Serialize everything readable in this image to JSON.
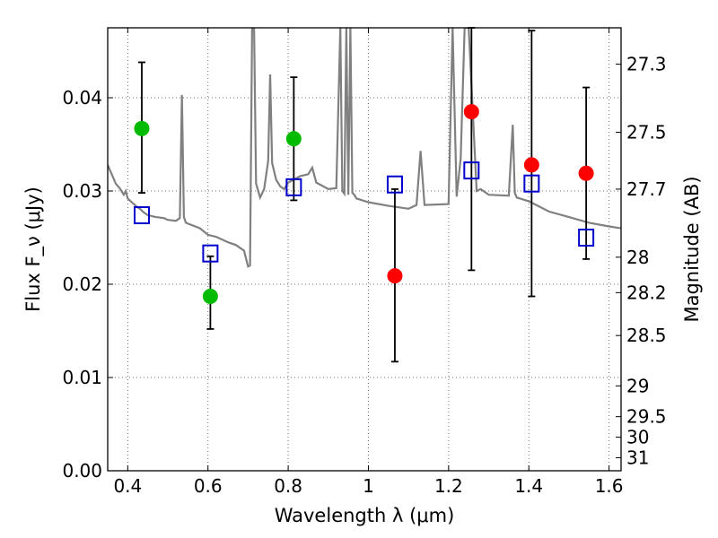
{
  "chart_data": {
    "type": "scatter",
    "title": "",
    "xlabel": "Wavelength λ (μm)",
    "ylabel": "Flux F_ν (μJy)",
    "ylabel_right": "Magnitude (AB)",
    "xlim": [
      0.35,
      1.63
    ],
    "ylim": [
      0.0,
      0.0475
    ],
    "grid": true,
    "x_ticks": [
      0.4,
      0.6,
      0.8,
      1.0,
      1.2,
      1.4,
      1.6
    ],
    "x_tick_labels": [
      "0.4",
      "0.6",
      "0.8",
      "1",
      "1.2",
      "1.4",
      "1.6"
    ],
    "y_ticks": [
      0.0,
      0.01,
      0.02,
      0.03,
      0.04
    ],
    "y_tick_labels": [
      "0.00",
      "0.01",
      "0.02",
      "0.03",
      "0.04"
    ],
    "right_ticks": [
      {
        "label": "27.3",
        "flux": 0.0436
      },
      {
        "label": "27.5",
        "flux": 0.0363
      },
      {
        "label": "27.7",
        "flux": 0.0302
      },
      {
        "label": "28",
        "flux": 0.0229
      },
      {
        "label": "28.2",
        "flux": 0.0191
      },
      {
        "label": "28.5",
        "flux": 0.0145
      },
      {
        "label": "29",
        "flux": 0.0091
      },
      {
        "label": "29.5",
        "flux": 0.0058
      },
      {
        "label": "30",
        "flux": 0.0036
      },
      {
        "label": "31",
        "flux": 0.0014
      }
    ],
    "colors": {
      "green_points": "#00bb00",
      "red_points": "#ff0000",
      "model_boxes": "#0000cc",
      "spectrum": "#808080",
      "error_bars": "#000000"
    },
    "series": [
      {
        "marker": "circle",
        "color": "#00bb00",
        "points": [
          {
            "x": 0.435,
            "y": 0.0367,
            "err_low": 0.0298,
            "err_high": 0.0438
          },
          {
            "x": 0.606,
            "y": 0.0187,
            "err_low": 0.0152,
            "err_high": 0.023
          },
          {
            "x": 0.814,
            "y": 0.0356,
            "err_low": 0.029,
            "err_high": 0.0422
          }
        ]
      },
      {
        "marker": "circle",
        "color": "#ff0000",
        "points": [
          {
            "x": 1.066,
            "y": 0.0209,
            "err_low": 0.0117,
            "err_high": 0.0302
          },
          {
            "x": 1.257,
            "y": 0.0385,
            "err_low": 0.0215,
            "err_high": 0.0475
          },
          {
            "x": 1.407,
            "y": 0.0328,
            "err_low": 0.0187,
            "err_high": 0.0472
          },
          {
            "x": 1.543,
            "y": 0.0319,
            "err_low": 0.0227,
            "err_high": 0.0411
          }
        ]
      },
      {
        "marker": "open-square",
        "color": "#0000cc",
        "points": [
          {
            "x": 0.435,
            "y": 0.0274
          },
          {
            "x": 0.606,
            "y": 0.0233
          },
          {
            "x": 0.814,
            "y": 0.0304
          },
          {
            "x": 1.066,
            "y": 0.0307
          },
          {
            "x": 1.257,
            "y": 0.0322
          },
          {
            "x": 1.407,
            "y": 0.0308
          },
          {
            "x": 1.543,
            "y": 0.025
          }
        ]
      }
    ],
    "spectrum": {
      "x": [
        0.35,
        0.36,
        0.37,
        0.38,
        0.39,
        0.395,
        0.4,
        0.41,
        0.42,
        0.43,
        0.44,
        0.45,
        0.47,
        0.49,
        0.5,
        0.52,
        0.53,
        0.535,
        0.54,
        0.545,
        0.55,
        0.58,
        0.6,
        0.62,
        0.65,
        0.67,
        0.69,
        0.7,
        0.705,
        0.71,
        0.715,
        0.72,
        0.73,
        0.74,
        0.75,
        0.755,
        0.76,
        0.77,
        0.78,
        0.79,
        0.8,
        0.83,
        0.85,
        0.86,
        0.87,
        0.9,
        0.92,
        0.93,
        0.935,
        0.94,
        0.945,
        0.95,
        0.955,
        0.96,
        0.965,
        0.97,
        1.0,
        1.05,
        1.1,
        1.12,
        1.13,
        1.14,
        1.2,
        1.21,
        1.22,
        1.23,
        1.24,
        1.25,
        1.27,
        1.28,
        1.3,
        1.35,
        1.36,
        1.365,
        1.37,
        1.4,
        1.45,
        1.5,
        1.55,
        1.6,
        1.63
      ],
      "y": [
        0.0328,
        0.0318,
        0.0308,
        0.0303,
        0.0296,
        0.03,
        0.0292,
        0.0288,
        0.0284,
        0.0281,
        0.0277,
        0.0274,
        0.0272,
        0.0271,
        0.0269,
        0.0268,
        0.0271,
        0.0403,
        0.0272,
        0.0266,
        0.0265,
        0.026,
        0.0253,
        0.0251,
        0.0245,
        0.0242,
        0.0236,
        0.0219,
        0.022,
        0.0475,
        0.0475,
        0.0308,
        0.0293,
        0.0302,
        0.0332,
        0.0425,
        0.033,
        0.0312,
        0.0305,
        0.0302,
        0.0309,
        0.0316,
        0.0318,
        0.0325,
        0.0309,
        0.0302,
        0.0303,
        0.0475,
        0.03,
        0.0297,
        0.0475,
        0.0296,
        0.0475,
        0.0298,
        0.0296,
        0.0292,
        0.0288,
        0.0284,
        0.0281,
        0.0285,
        0.0343,
        0.0285,
        0.0286,
        0.0475,
        0.0294,
        0.0335,
        0.0475,
        0.0475,
        0.03,
        0.0302,
        0.0296,
        0.0295,
        0.0371,
        0.0298,
        0.0293,
        0.0289,
        0.0278,
        0.0272,
        0.0266,
        0.0262,
        0.026
      ]
    }
  }
}
